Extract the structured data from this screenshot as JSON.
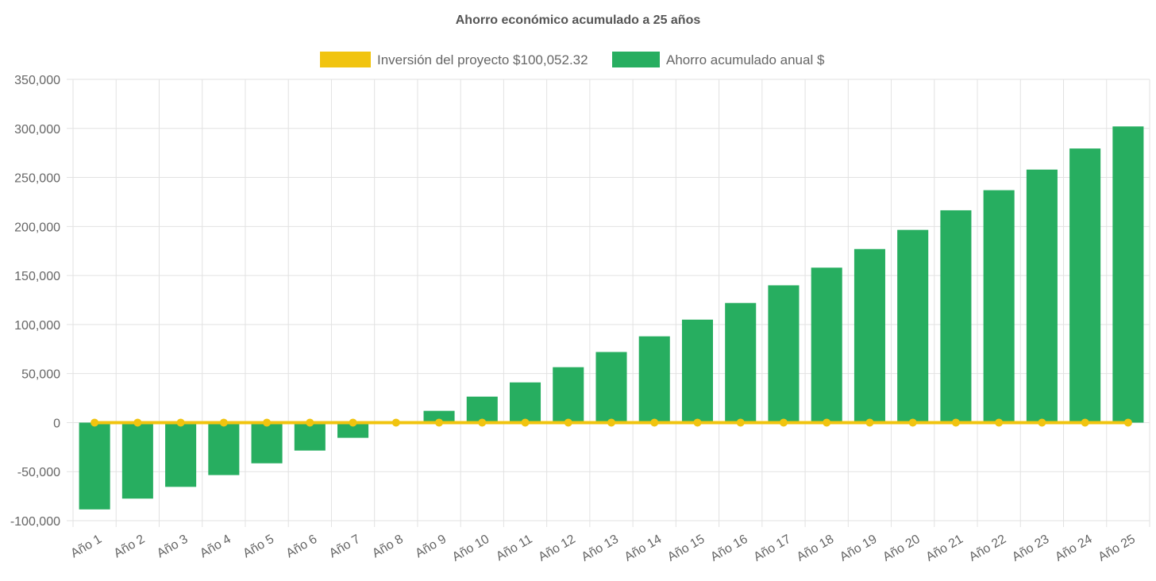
{
  "chart_data": {
    "type": "bar",
    "title": "Ahorro económico acumulado a 25 años",
    "xlabel": "",
    "ylabel": "",
    "categories": [
      "Año 1",
      "Año 2",
      "Año 3",
      "Año 4",
      "Año 5",
      "Año 6",
      "Año 7",
      "Año 8",
      "Año 9",
      "Año 10",
      "Año 11",
      "Año 12",
      "Año 13",
      "Año 14",
      "Año 15",
      "Año 16",
      "Año 17",
      "Año 18",
      "Año 19",
      "Año 20",
      "Año 21",
      "Año 22",
      "Año 23",
      "Año 24",
      "Año 25"
    ],
    "ylim": [
      -100000,
      350000
    ],
    "yticks": [
      -100000,
      -50000,
      0,
      50000,
      100000,
      150000,
      200000,
      250000,
      300000,
      350000
    ],
    "ytick_labels": [
      "-100,000",
      "-50,000",
      "0",
      "50,000",
      "100,000",
      "150,000",
      "200,000",
      "250,000",
      "300,000",
      "350,000"
    ],
    "grid": true,
    "legend_position": "top-center",
    "series": [
      {
        "name": "Inversión del proyecto $100,052.32",
        "type": "line",
        "color": "#f1c40f",
        "values": [
          0,
          0,
          0,
          0,
          0,
          0,
          0,
          0,
          0,
          0,
          0,
          0,
          0,
          0,
          0,
          0,
          0,
          0,
          0,
          0,
          0,
          0,
          0,
          0,
          0
        ]
      },
      {
        "name": "Ahorro acumulado anual $",
        "type": "bar",
        "color": "#27ae60",
        "values": [
          -88500,
          -77500,
          -65500,
          -53500,
          -41500,
          -28500,
          -15500,
          -1500,
          12000,
          26500,
          41000,
          56500,
          72000,
          88000,
          105000,
          122000,
          140000,
          158000,
          177000,
          196500,
          216500,
          237000,
          258000,
          279500,
          302000
        ]
      }
    ]
  }
}
